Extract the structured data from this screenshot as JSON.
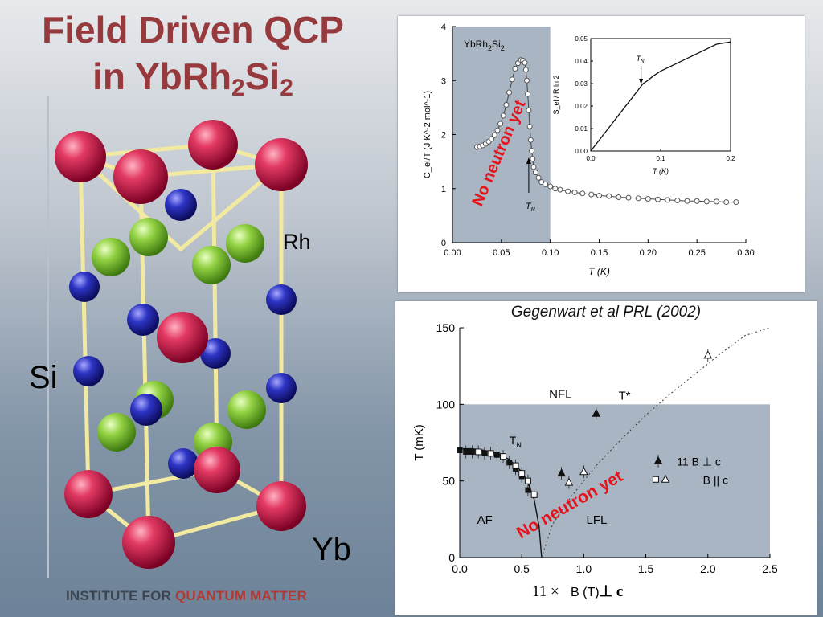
{
  "slide": {
    "title_line1": "Field Driven QCP",
    "title_line2_prefix": "in YbRh",
    "title_sub1": "2",
    "title_mid": "Si",
    "title_sub2": "2",
    "labels": {
      "rh": "Rh",
      "si": "Si",
      "yb": "Yb"
    },
    "footer_prefix": "INSTITUTE FOR ",
    "footer_accent": "QUANTUM MATTER"
  },
  "colors": {
    "title": "#963a3d",
    "yb_atom": "#d81e4f",
    "rh_atom": "#8fd13f",
    "si_atom": "#2a2fb7",
    "bond": "#f2eaa0",
    "shading": "#a9b5c2",
    "annotation_red": "#e5141c"
  },
  "chart_data": [
    {
      "type": "scatter",
      "xlabel": "T (K)",
      "ylabel": "C_el/T (J K^-2 mol^-1)",
      "xlim": [
        0,
        0.3
      ],
      "ylim": [
        0,
        4
      ],
      "xticks": [
        "0.00",
        "0.05",
        "0.10",
        "0.15",
        "0.20",
        "0.25",
        "0.30"
      ],
      "yticks": [
        "0",
        "1",
        "2",
        "3",
        "4"
      ],
      "sample_label_base": "YbRh",
      "sample_label_sub1": "2",
      "sample_label_mid": "Si",
      "sample_label_sub2": "2",
      "annotation": "No neutron yet",
      "tn_label": "T",
      "tn_sub": "N",
      "shaded_region_x": [
        0,
        0.1
      ],
      "series": [
        {
          "x": [
            0.025,
            0.028,
            0.031,
            0.034,
            0.037,
            0.04,
            0.043,
            0.046,
            0.049,
            0.052,
            0.055,
            0.058,
            0.061,
            0.064,
            0.067,
            0.07,
            0.072,
            0.074,
            0.075,
            0.076,
            0.077,
            0.078,
            0.079,
            0.08,
            0.081,
            0.082,
            0.083,
            0.085,
            0.088,
            0.091,
            0.095,
            0.1,
            0.105,
            0.11,
            0.118,
            0.125,
            0.133,
            0.142,
            0.15,
            0.16,
            0.17,
            0.18,
            0.19,
            0.2,
            0.21,
            0.22,
            0.23,
            0.24,
            0.25,
            0.26,
            0.27,
            0.28,
            0.29
          ],
          "y": [
            1.77,
            1.78,
            1.8,
            1.83,
            1.87,
            1.92,
            1.99,
            2.08,
            2.2,
            2.35,
            2.55,
            2.78,
            3.02,
            3.22,
            3.32,
            3.38,
            3.37,
            3.33,
            3.2,
            3.0,
            2.75,
            2.45,
            2.15,
            1.9,
            1.7,
            1.55,
            1.4,
            1.3,
            1.2,
            1.12,
            1.08,
            1.04,
            1.0,
            0.98,
            0.95,
            0.93,
            0.91,
            0.89,
            0.87,
            0.86,
            0.84,
            0.83,
            0.82,
            0.81,
            0.8,
            0.79,
            0.78,
            0.77,
            0.77,
            0.76,
            0.76,
            0.75,
            0.75
          ]
        }
      ],
      "inset": {
        "type": "line",
        "xlabel": "T (K)",
        "ylabel": "S_el / R ln 2",
        "xlim": [
          0,
          0.2
        ],
        "ylim": [
          0,
          0.05
        ],
        "xticks": [
          "0.0",
          "0.1",
          "0.2"
        ],
        "yticks": [
          "0.00",
          "0.01",
          "0.02",
          "0.03",
          "0.04",
          "0.05"
        ],
        "tn_label": "T",
        "tn_sub": "N",
        "x": [
          0,
          0.02,
          0.04,
          0.06,
          0.07,
          0.075,
          0.08,
          0.09,
          0.1,
          0.12,
          0.14,
          0.16,
          0.18,
          0.2
        ],
        "y": [
          0,
          0.008,
          0.016,
          0.024,
          0.028,
          0.03,
          0.031,
          0.0335,
          0.0355,
          0.0385,
          0.0415,
          0.0445,
          0.0475,
          0.0485
        ]
      }
    },
    {
      "type": "scatter",
      "citation": "Gegenwart et al PRL (2002)",
      "xlabel": "B (T)",
      "ylabel": "T (mK)",
      "xlim": [
        0,
        2.5
      ],
      "ylim": [
        0,
        150
      ],
      "xticks": [
        "0.0",
        "0.5",
        "1.0",
        "1.5",
        "2.0",
        "2.5"
      ],
      "yticks": [
        "0",
        "50",
        "100",
        "150"
      ],
      "regions": [
        "NFL",
        "AF",
        "LFL"
      ],
      "tstar_label": "T*",
      "tn_label": "T",
      "tn_sub": "N",
      "annotation": "No neutron yet",
      "legend_perp": "11  B ⊥ c",
      "legend_par": "B || c",
      "caption_prefix": "11 ×",
      "caption_unit": "B (T)",
      "caption_perp": "⊥ c",
      "shaded_region_y": [
        0,
        100
      ],
      "series": [
        {
          "name": "T_N, B ⊥ c",
          "marker": "filled-square",
          "x": [
            0.0,
            0.05,
            0.1,
            0.2,
            0.3,
            0.4,
            0.45,
            0.5,
            0.55
          ],
          "y": [
            70,
            69,
            69,
            68,
            67,
            62,
            58,
            53,
            44
          ]
        },
        {
          "name": "T_N, B || c",
          "marker": "open-square",
          "x": [
            0.15,
            0.25,
            0.35,
            0.45,
            0.5,
            0.55,
            0.6
          ],
          "y": [
            69,
            68,
            66,
            60,
            55,
            50,
            41
          ]
        },
        {
          "name": "T*, B ⊥ c",
          "marker": "filled-triangle",
          "x": [
            0.82,
            1.1,
            1.6
          ],
          "y": [
            55,
            94,
            63
          ]
        },
        {
          "name": "T*, B || c",
          "marker": "open-triangle",
          "x": [
            0.88,
            1.0,
            2.0
          ],
          "y": [
            49,
            56,
            132
          ]
        }
      ],
      "tn_curve": {
        "x": [
          0,
          0.1,
          0.2,
          0.3,
          0.4,
          0.5,
          0.55,
          0.6,
          0.64,
          0.66
        ],
        "y": [
          71,
          71,
          70,
          68,
          64,
          56,
          49,
          38,
          20,
          0
        ]
      },
      "tstar_curve": {
        "x": [
          0.66,
          0.75,
          0.9,
          1.1,
          1.3,
          1.5,
          1.7,
          1.9,
          2.1,
          2.3,
          2.5
        ],
        "y": [
          0,
          22,
          40,
          60,
          77,
          93,
          107,
          120,
          133,
          145,
          156
        ]
      }
    }
  ]
}
